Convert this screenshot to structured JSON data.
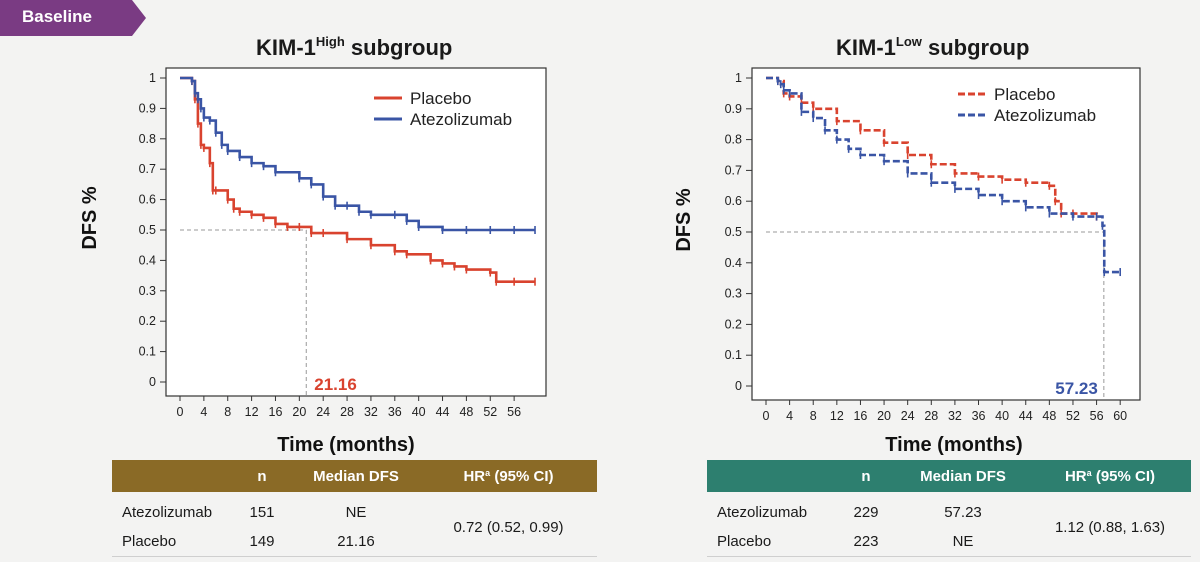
{
  "badge": {
    "label": "Baseline",
    "color": "#7a3b83"
  },
  "colors": {
    "placebo": "#d9432f",
    "atezolizumab": "#3a55a5"
  },
  "left_title": {
    "main": "KIM-1",
    "sup": "High",
    "rest": " subgroup"
  },
  "right_title": {
    "main": "KIM-1",
    "sup": "Low",
    "rest": " subgroup"
  },
  "chart_data": [
    {
      "type": "line",
      "title": "KIM-1High subgroup",
      "xlabel": "Time (months)",
      "ylabel": "DFS %",
      "xlim": [
        0,
        60
      ],
      "ylim": [
        0,
        1
      ],
      "xticks": [
        0,
        4,
        8,
        12,
        16,
        20,
        24,
        28,
        32,
        36,
        40,
        44,
        48,
        52,
        56
      ],
      "yticks": [
        0,
        0.1,
        0.2,
        0.3,
        0.4,
        0.5,
        0.6,
        0.7,
        0.8,
        0.9,
        1
      ],
      "ytick_labels": [
        "0",
        "0.1",
        "0.2",
        "0.3",
        "0.4",
        "0.5",
        "0.6",
        "0.7",
        "0.8",
        "0.9",
        "1"
      ],
      "legend_position": "top-right",
      "line_style": "solid",
      "series": [
        {
          "name": "Placebo",
          "color": "#d9432f",
          "x": [
            0,
            2,
            2.5,
            3,
            3.5,
            4,
            5,
            5.5,
            6,
            8,
            9,
            10,
            12,
            14,
            16,
            18,
            20,
            22,
            24,
            28,
            32,
            36,
            38,
            42,
            44,
            46,
            48,
            52,
            53,
            56,
            59.5
          ],
          "y": [
            1,
            0.99,
            0.93,
            0.85,
            0.78,
            0.77,
            0.72,
            0.63,
            0.63,
            0.6,
            0.57,
            0.56,
            0.55,
            0.54,
            0.52,
            0.51,
            0.51,
            0.49,
            0.49,
            0.47,
            0.45,
            0.43,
            0.42,
            0.4,
            0.39,
            0.38,
            0.37,
            0.36,
            0.33,
            0.33,
            0.33
          ]
        },
        {
          "name": "Atezolizumab",
          "color": "#3a55a5",
          "x": [
            0,
            2,
            2.5,
            3,
            3.5,
            4,
            5,
            6,
            7,
            8,
            10,
            12,
            14,
            16,
            20,
            22,
            24,
            26,
            28,
            30,
            32,
            36,
            38,
            40,
            44,
            48,
            52,
            56,
            59.5
          ],
          "y": [
            1,
            0.99,
            0.95,
            0.93,
            0.9,
            0.87,
            0.86,
            0.82,
            0.78,
            0.76,
            0.74,
            0.72,
            0.71,
            0.69,
            0.67,
            0.65,
            0.61,
            0.58,
            0.58,
            0.56,
            0.55,
            0.55,
            0.53,
            0.51,
            0.5,
            0.5,
            0.5,
            0.5,
            0.5
          ]
        }
      ],
      "median_marker": {
        "label": "21.16",
        "x": 21.16,
        "y": 0.5,
        "color": "#d9432f"
      }
    },
    {
      "type": "line",
      "title": "KIM-1Low subgroup",
      "xlabel": "Time (months)",
      "ylabel": "DFS %",
      "xlim": [
        0,
        62
      ],
      "ylim": [
        0,
        1
      ],
      "xticks": [
        0,
        4,
        8,
        12,
        16,
        20,
        24,
        28,
        32,
        36,
        40,
        44,
        48,
        52,
        56,
        60
      ],
      "yticks": [
        0,
        0.1,
        0.2,
        0.3,
        0.4,
        0.5,
        0.6,
        0.7,
        0.8,
        0.9,
        1
      ],
      "ytick_labels": [
        "0",
        "0.1",
        "0.2",
        "0.3",
        "0.4",
        "0.5",
        "0.6",
        "0.7",
        "0.8",
        "0.9",
        "1"
      ],
      "legend_position": "top-right",
      "line_style": "dashed",
      "series": [
        {
          "name": "Placebo",
          "color": "#d9432f",
          "x": [
            0,
            2,
            3,
            4,
            6,
            8,
            12,
            16,
            20,
            24,
            28,
            32,
            36,
            40,
            44,
            48,
            49,
            50,
            52,
            56
          ],
          "y": [
            1,
            0.99,
            0.95,
            0.94,
            0.92,
            0.9,
            0.86,
            0.83,
            0.79,
            0.75,
            0.72,
            0.69,
            0.68,
            0.67,
            0.66,
            0.65,
            0.6,
            0.56,
            0.56,
            0.55
          ]
        },
        {
          "name": "Atezolizumab",
          "color": "#3a55a5",
          "x": [
            0,
            2,
            2.5,
            3,
            4,
            6,
            8,
            10,
            12,
            14,
            16,
            20,
            24,
            28,
            32,
            36,
            40,
            44,
            48,
            52,
            56,
            57,
            57.3,
            60
          ],
          "y": [
            1,
            0.99,
            0.98,
            0.96,
            0.95,
            0.89,
            0.87,
            0.83,
            0.8,
            0.77,
            0.75,
            0.73,
            0.69,
            0.66,
            0.64,
            0.62,
            0.6,
            0.58,
            0.56,
            0.55,
            0.55,
            0.52,
            0.37,
            0.37
          ]
        }
      ],
      "median_marker": {
        "label": "57.23",
        "x": 57.23,
        "y": 0.5,
        "color": "#3a55a5"
      }
    }
  ],
  "left_table": {
    "header_color": "#8a6a26",
    "col_n": "n",
    "col_median": "Median DFS",
    "col_hr": "HR",
    "col_hr_sup": "a",
    "col_hr_rest": " (95% CI)",
    "rows": [
      {
        "name": "Atezolizumab",
        "n": "151",
        "median": "NE"
      },
      {
        "name": "Placebo",
        "n": "149",
        "median": "21.16"
      }
    ],
    "hr": "0.72 (0.52, 0.99)"
  },
  "right_table": {
    "header_color": "#2d7f6f",
    "col_n": "n",
    "col_median": "Median DFS",
    "col_hr": "HR",
    "col_hr_sup": "a",
    "col_hr_rest": " (95% CI)",
    "rows": [
      {
        "name": "Atezolizumab",
        "n": "229",
        "median": "57.23"
      },
      {
        "name": "Placebo",
        "n": "223",
        "median": "NE"
      }
    ],
    "hr": "1.12 (0.88, 1.63)"
  }
}
